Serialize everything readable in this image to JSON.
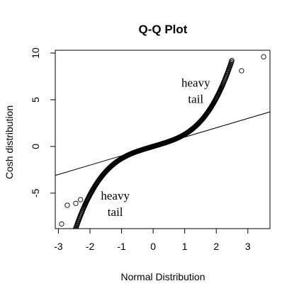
{
  "chart_data": {
    "type": "scatter",
    "title": "Q-Q Plot",
    "xlabel": "Normal Distribution",
    "ylabel": "Cosh distribution",
    "xlim": [
      -3.1,
      3.7
    ],
    "ylim": [
      -8.8,
      10.3
    ],
    "x_ticks": [
      "-3",
      "-2",
      "-1",
      "0",
      "1",
      "2",
      "3"
    ],
    "x_tick_values": [
      -3,
      -2,
      -1,
      0,
      1,
      2,
      3
    ],
    "y_ticks": [
      "-5",
      "0",
      "5",
      "10"
    ],
    "y_tick_values": [
      -5,
      0,
      5,
      10
    ],
    "grid": false,
    "reference_line": {
      "slope": 1.0,
      "intercept": 0.0
    },
    "quantile_range": [
      -2.9,
      2.5
    ],
    "outliers": [
      {
        "x": -2.9,
        "y": -8.3
      },
      {
        "x": -2.72,
        "y": -6.3
      },
      {
        "x": -2.45,
        "y": -6.1
      },
      {
        "x": -2.3,
        "y": -5.7
      },
      {
        "x": 2.8,
        "y": 8.1
      },
      {
        "x": 3.5,
        "y": 9.6
      }
    ],
    "annotations": [
      {
        "line1": "heavy",
        "line2": "tail",
        "x": 1.35,
        "y": 6.4
      },
      {
        "line1": "heavy",
        "line2": "tail",
        "x": -1.2,
        "y": -5.7
      }
    ]
  }
}
